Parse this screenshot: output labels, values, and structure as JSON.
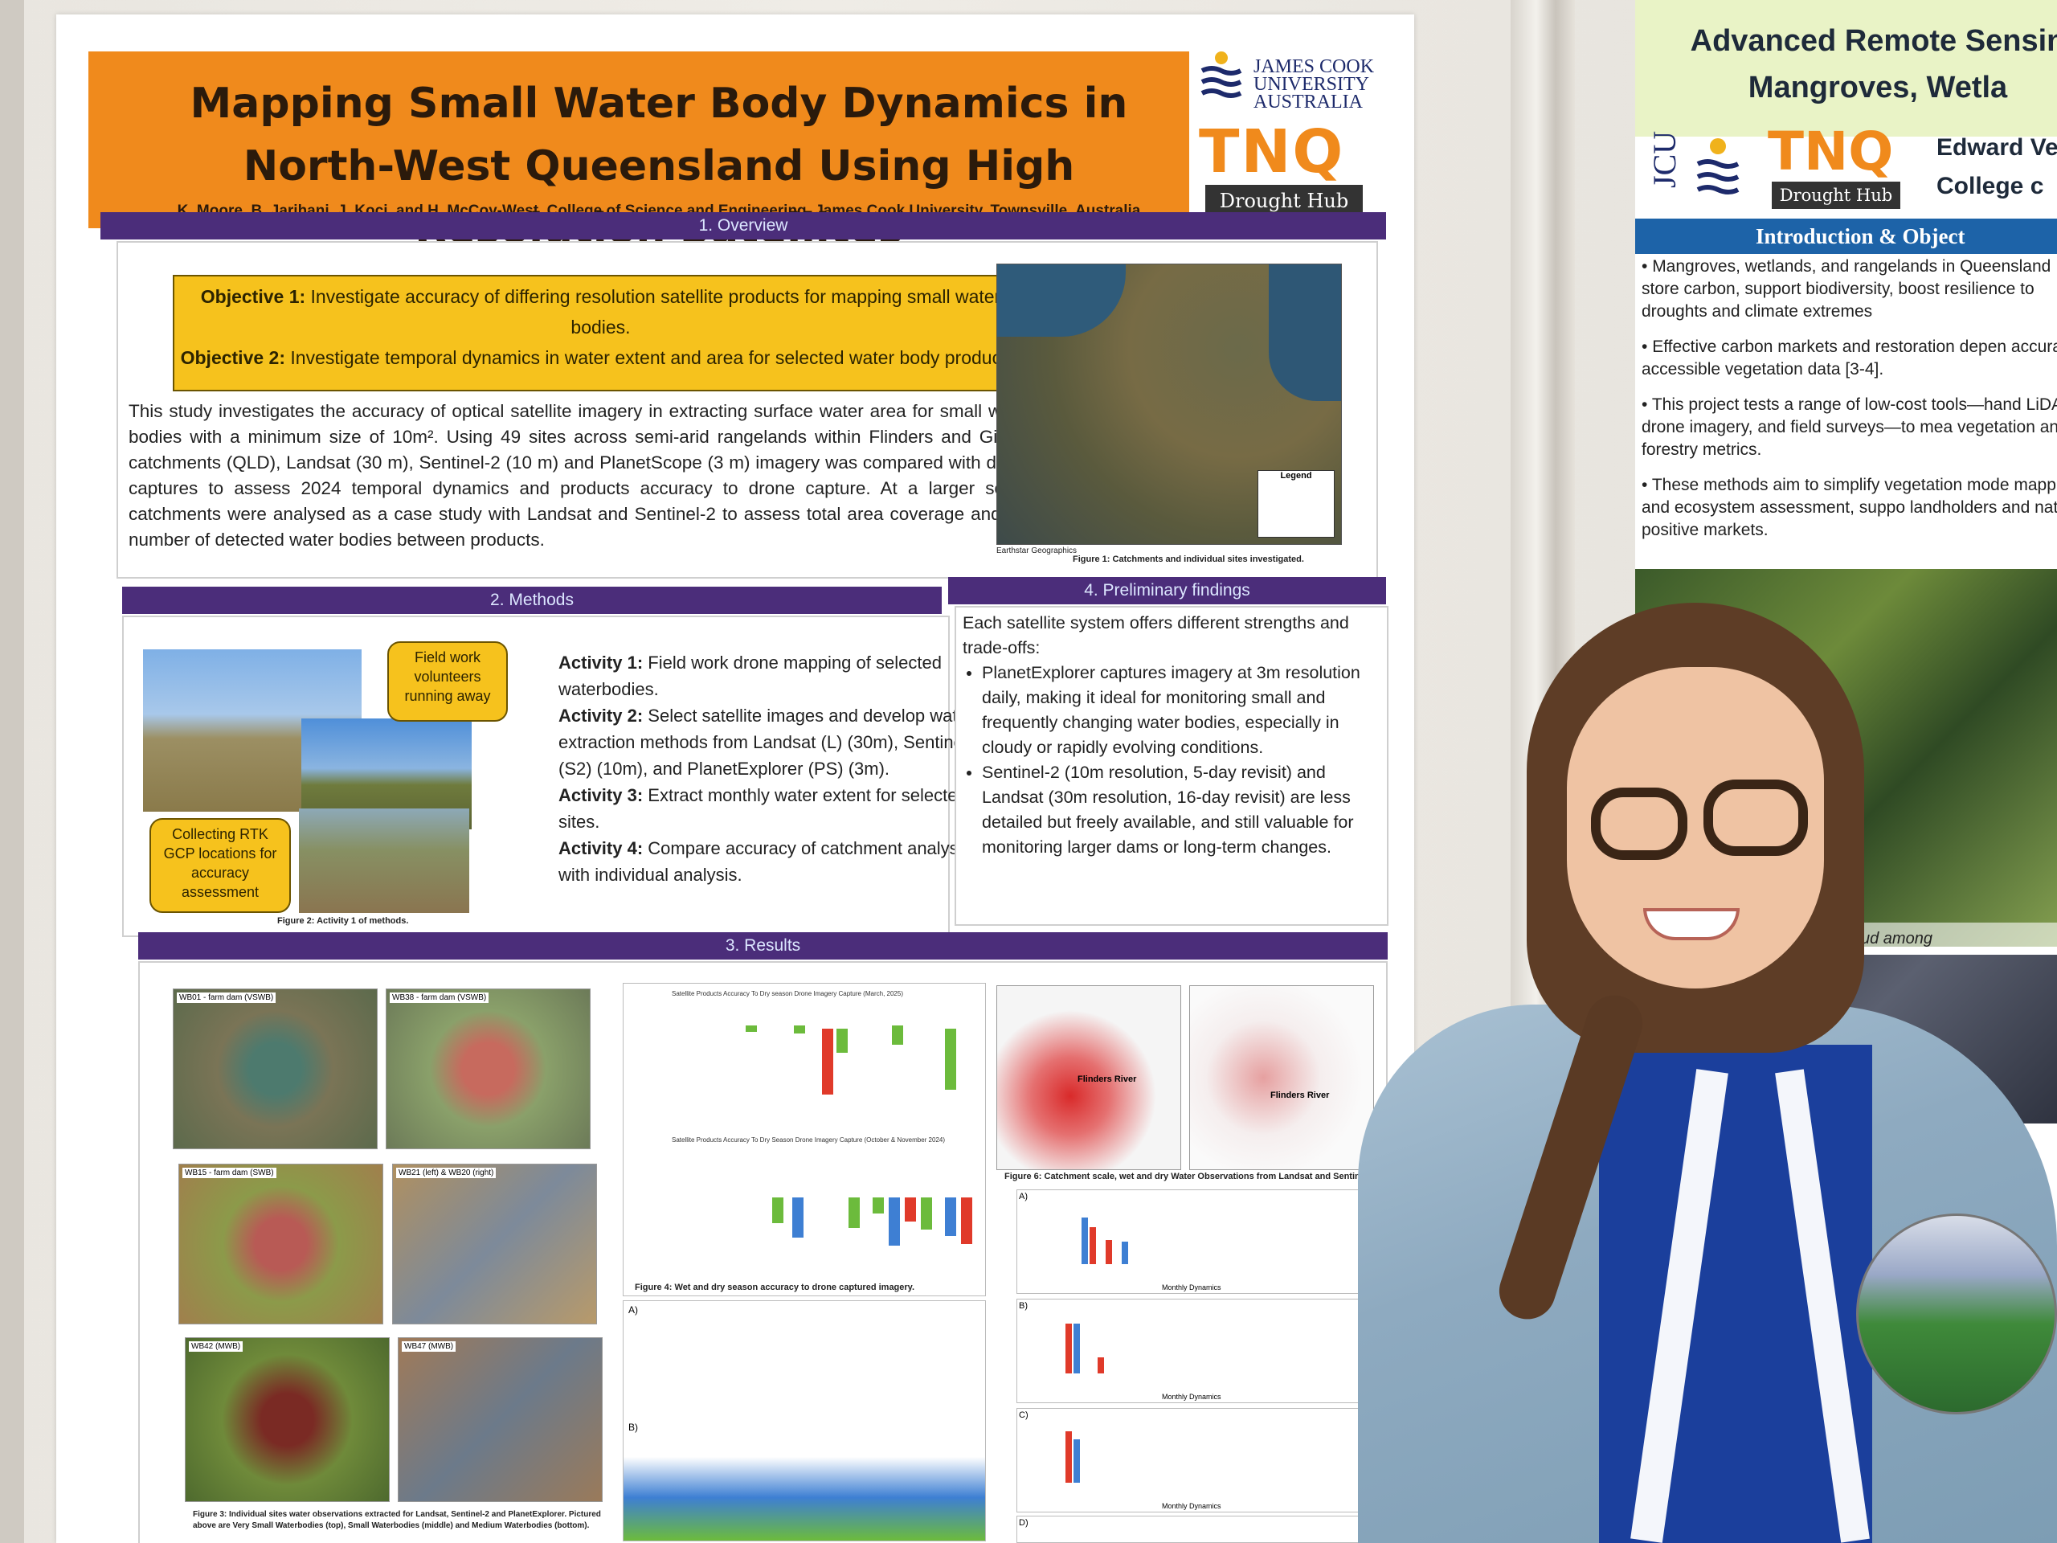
{
  "poster": {
    "title": "Mapping Small Water Body Dynamics in North-West Queensland Using High Resolution Satellites",
    "authors": "K. Moore, B. Jarihani, J. Koci, and H. McCoy-West, College of Science and Engineering, James Cook University, Townsville, Australia",
    "logo_university": "JAMES COOK UNIVERSITY AUSTRALIA",
    "logo_tnq": "TNQ",
    "logo_drought": "Drought Hub",
    "sections": {
      "overview": "1. Overview",
      "methods": "2. Methods",
      "results": "3. Results",
      "findings": "4. Preliminary findings"
    },
    "objective1_label": "Objective 1:",
    "objective1_text": "Investigate accuracy of differing resolution satellite products for mapping small water bodies.",
    "objective2_label": "Objective 2:",
    "objective2_text": "Investigate temporal dynamics in water extent and area for selected water body products.",
    "overview_text": "This study investigates the accuracy of optical satellite imagery in extracting surface water area for small water bodies with a minimum size of 10m². Using 49 sites across semi-arid rangelands within Flinders and Gilbert catchments (QLD), Landsat (30 m), Sentinel-2 (10 m) and PlanetScope (3 m) imagery was compared with drone captures to assess 2024 temporal dynamics and products accuracy to drone capture. At a larger scale, catchments were analysed as a case study with Landsat and Sentinel-2 to assess total area coverage and the number of detected water bodies between products.",
    "figure1_caption": "Figure 1: Catchments and individual sites investigated.",
    "map_legend_title": "Legend",
    "map_source": "Earthstar Geographics",
    "note_field": "Field work volunteers running away",
    "note_rtk": "Collecting RTK GCP locations for accuracy assessment",
    "figure2_caption": "Figure 2: Activity 1 of methods.",
    "activity1_label": "Activity 1:",
    "activity1_text": "Field work drone mapping of selected waterbodies.",
    "activity2_label": "Activity 2:",
    "activity2_text": "Select satellite images and develop water extraction methods from Landsat (L) (30m), Sentinel-2 (S2) (10m), and PlanetExplorer (PS) (3m).",
    "activity3_label": "Activity 3:",
    "activity3_text": "Extract monthly water extent for selected sites.",
    "activity4_label": "Activity 4:",
    "activity4_text": "Compare accuracy of catchment analysis with individual analysis.",
    "findings_intro": "Each satellite system offers different strengths and trade-offs:",
    "finding1": "PlanetExplorer captures imagery at 3m resolution daily, making it ideal for monitoring small and frequently changing water bodies, especially in cloudy or rapidly evolving conditions.",
    "finding2": "Sentinel-2 (10m resolution, 5-day revisit) and Landsat (30m resolution, 16-day revisit) are less detailed but freely available, and still valuable for monitoring larger dams or long-term changes.",
    "figure3_caption": "Figure 3: Individual sites water observations extracted for Landsat, Sentinel-2 and PlanetExplorer. Pictured above are Very Small Waterbodies (top), Small Waterbodies (middle) and Medium Waterbodies (bottom).",
    "figure4_caption": "Figure 4: Wet and dry season accuracy to drone captured imagery.",
    "figure6_caption": "Figure 6: Catchment scale, wet and dry Water Observations from Landsat and Sentinel-2.",
    "tile_labels": [
      "WB01 - farm dam (VSWB)",
      "WB38 - farm dam (VSWB)",
      "WB15 - farm dam (SWB)",
      "WB21 (left) & WB20 (right)",
      "WB42 (MWB)",
      "WB47 (MWB)"
    ],
    "river_labels": [
      "Flinders River",
      "Flinders River"
    ],
    "chart_title_1": "Satellite Products Accuracy To Dry season Drone Imagery Capture (March, 2025)",
    "chart_title_2": "Satellite Products Accuracy To Dry Season Drone Imagery Capture (October & November 2024)",
    "monthly_label": "Monthly Dynamics",
    "panel_letters": [
      "A)",
      "B)",
      "C)",
      "D)",
      "A)",
      "B)"
    ]
  },
  "poster2": {
    "title_line1": "Advanced Remote Sensin",
    "title_line2": "Mangroves, Wetla",
    "logo_tnq": "TNQ",
    "logo_drought": "Drought Hub",
    "logo_jcu": "JCU",
    "author": "Edward Ve",
    "college": "College c",
    "section": "Introduction & Object",
    "bullet1": "Mangroves, wetlands, and rangelands in Queensland store carbon, support biodiversity, boost resilience to droughts and climate extremes",
    "bullet2": "Effective carbon markets and restoration depen accurate, accessible vegetation data [3-4].",
    "bullet3": "This project tests a range of low-cost tools—hand LiDAR, drone imagery, and field surveys—to mea vegetation and forestry metrics.",
    "bullet4": "These methods aim to simplify vegetation mode mapping, and ecosystem assessment, suppo landholders and nature positive markets.",
    "photo_caption": "DAR colourised point cloud among"
  },
  "colors": {
    "title_orange": "#f08a1c",
    "section_purple": "#4b2d7a",
    "objective_yellow": "#f6c21d",
    "poster2_blue": "#1d63a8"
  }
}
